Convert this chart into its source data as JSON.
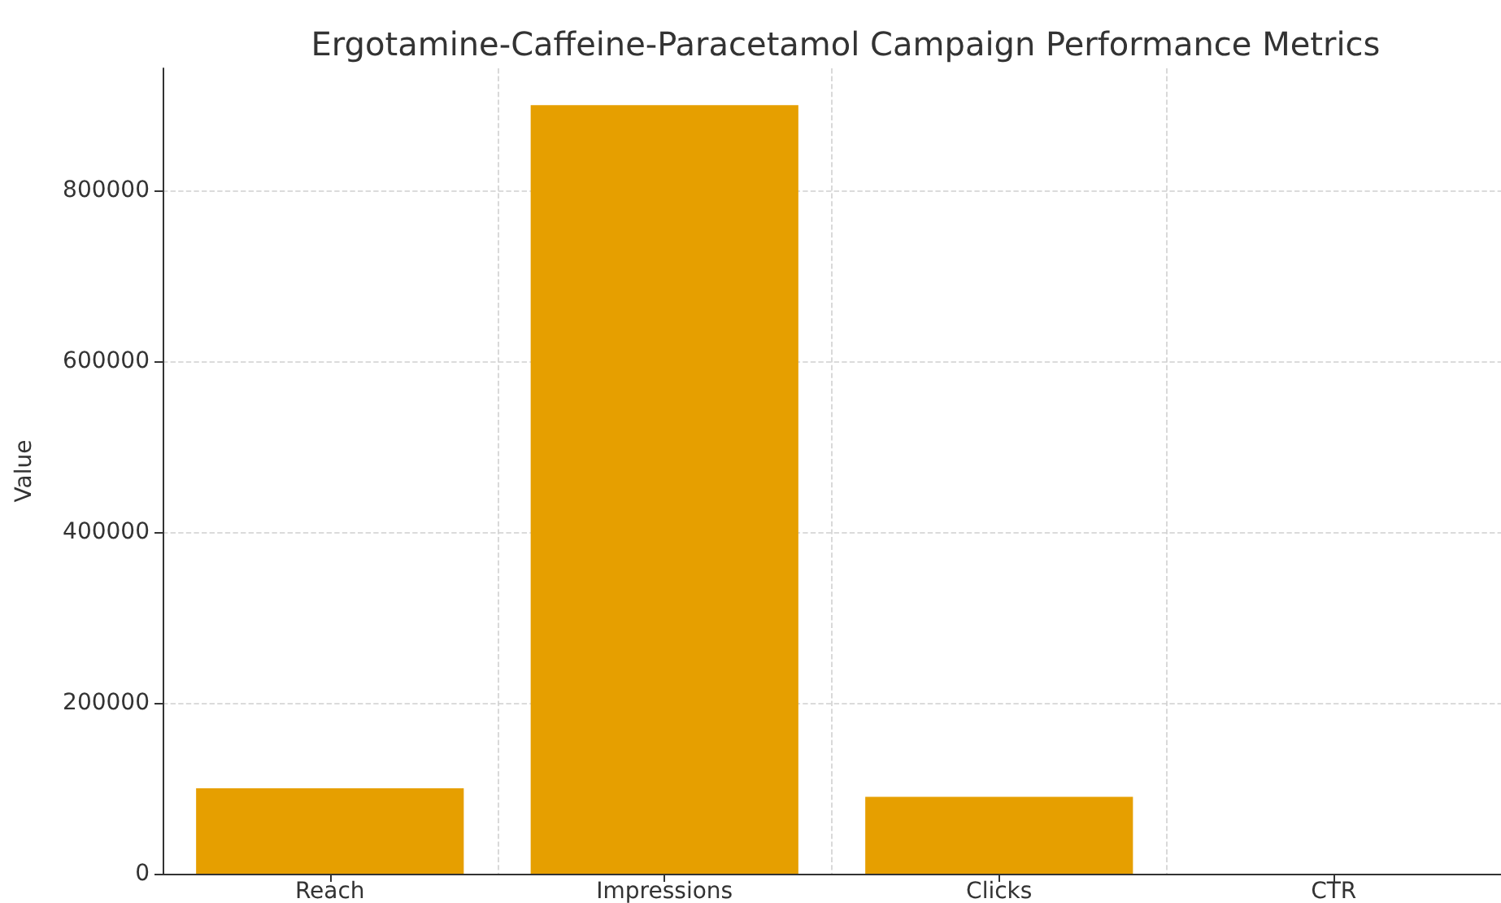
{
  "chart_data": {
    "type": "bar",
    "title": "Ergotamine-Caffeine-Paracetamol Campaign Performance Metrics",
    "ylabel": "Value",
    "categories": [
      "Reach",
      "Impressions",
      "Clicks",
      "CTR"
    ],
    "values": [
      100000,
      900000,
      90000,
      0
    ],
    "color": "#e69f00",
    "ylim": [
      0,
      943000
    ],
    "yticks": [
      0,
      200000,
      400000,
      600000,
      800000
    ],
    "grid": true
  }
}
